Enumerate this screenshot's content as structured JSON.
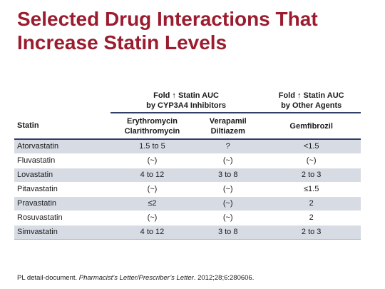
{
  "slide": {
    "title_lines": [
      "Selected Drug Interactions That",
      "Increase Statin Levels"
    ]
  },
  "colors": {
    "title": "#9b1c2e",
    "rule": "#2f3f66",
    "row_shade": "#d7dbe3"
  },
  "table": {
    "group_headers": {
      "cyp3a4": [
        "Fold ↑ Statin AUC",
        "by CYP3A4 Inhibitors"
      ],
      "other": [
        "Fold ↑ Statin AUC",
        "by Other Agents"
      ]
    },
    "column_headers": {
      "statin": "Statin",
      "ery_clari": [
        "Erythromycin",
        "Clarithromycin"
      ],
      "vera_dilt": [
        "Verapamil",
        "Diltiazem"
      ],
      "gemfibrozil": "Gemfibrozil"
    },
    "rows": [
      [
        "Atorvastatin",
        "1.5 to 5",
        "?",
        "<1.5"
      ],
      [
        "Fluvastatin",
        "(~)",
        "(~)",
        "(~)"
      ],
      [
        "Lovastatin",
        "4 to 12",
        "3 to 8",
        "2 to 3"
      ],
      [
        "Pitavastatin",
        "(~)",
        "(~)",
        "≤1.5"
      ],
      [
        "Pravastatin",
        "≤2",
        "(~)",
        "2"
      ],
      [
        "Rosuvastatin",
        "(~)",
        "(~)",
        "2"
      ],
      [
        "Simvastatin",
        "4 to 12",
        "3 to 8",
        "2 to 3"
      ]
    ]
  },
  "citation": {
    "prefix": "PL detail-document. ",
    "journal": "Pharmacist’s Letter/Prescriber’s Letter",
    "suffix": ". 2012;28;6:280606."
  }
}
